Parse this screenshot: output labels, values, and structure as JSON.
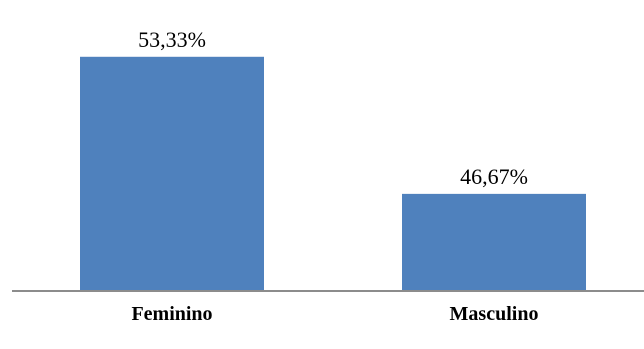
{
  "chart_data": {
    "type": "bar",
    "categories": [
      "Feminino",
      "Masculino"
    ],
    "values": [
      53.33,
      46.67
    ],
    "data_labels": [
      "53,33%",
      "46,67%"
    ],
    "ylim": [
      42,
      54
    ],
    "grid": false,
    "legend": "none",
    "colors": {
      "bar": "#4f81bd",
      "axis": "#8c8c8c"
    }
  }
}
